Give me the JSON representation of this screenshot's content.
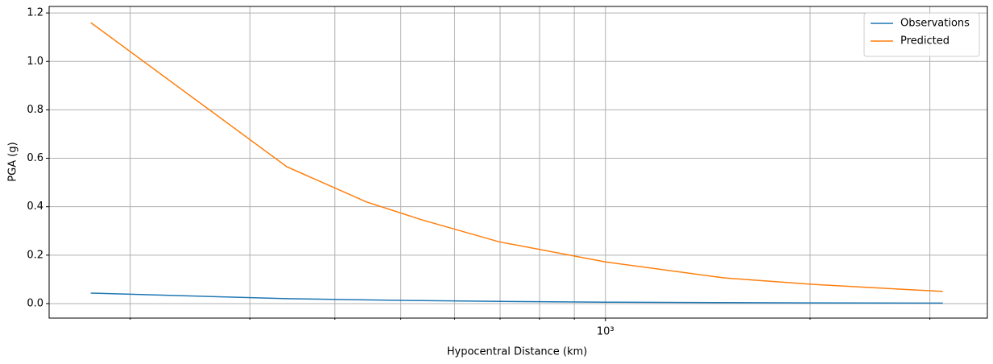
{
  "chart_data": {
    "type": "line",
    "xlabel": "Hypocentral Distance (km)",
    "ylabel": "PGA (g)",
    "x": [
      175,
      340,
      445,
      538,
      698,
      1000,
      1496,
      2000,
      3135
    ],
    "series": [
      {
        "name": "Observations",
        "color": "#1f77b4",
        "values": [
          0.043,
          0.02,
          0.015,
          0.012,
          0.009,
          0.006,
          0.004,
          0.003,
          0.002
        ]
      },
      {
        "name": "Predicted",
        "color": "#ff7f0e",
        "values": [
          1.16,
          0.565,
          0.42,
          0.345,
          0.255,
          0.172,
          0.106,
          0.08,
          0.05
        ]
      }
    ],
    "xscale": "log",
    "xlim": [
      152,
      3645
    ],
    "ylim": [
      -0.06,
      1.227
    ],
    "xticks": [
      {
        "value": 1000,
        "label": "10³"
      }
    ],
    "xminorticks": [
      200,
      300,
      400,
      500,
      600,
      700,
      800,
      900,
      2000,
      3000
    ],
    "yticks": [
      {
        "value": 0,
        "label": "0.0"
      },
      {
        "value": 0.2,
        "label": "0.2"
      },
      {
        "value": 0.4,
        "label": "0.4"
      },
      {
        "value": 0.6,
        "label": "0.6"
      },
      {
        "value": 0.8,
        "label": "0.8"
      },
      {
        "value": 1.0,
        "label": "1.0"
      },
      {
        "value": 1.2,
        "label": "1.2"
      }
    ],
    "grid": true,
    "legend": "upper-right"
  }
}
